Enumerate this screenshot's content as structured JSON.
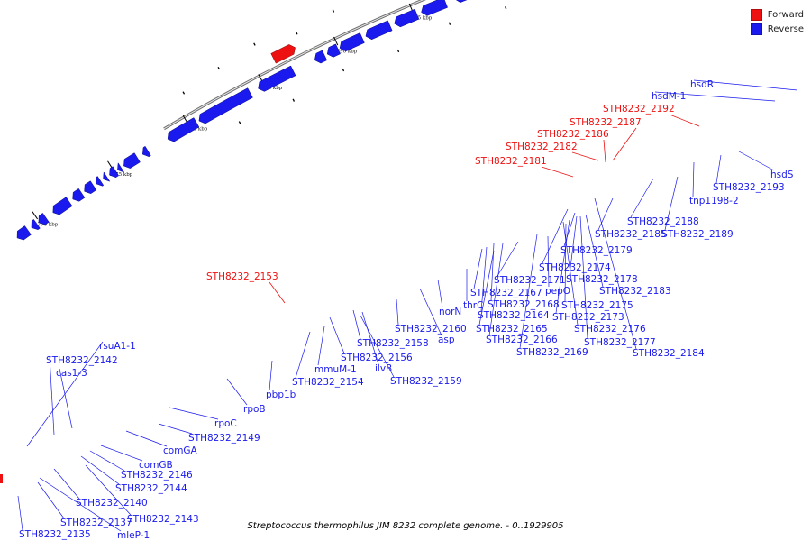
{
  "legend": {
    "forward_label": "Forward",
    "reverse_label": "Reverse",
    "forward_color": "#ee1111",
    "reverse_color": "#1a1aee"
  },
  "caption": "Streptococcus thermophilus JIM 8232 complete genome. - 0..1929905",
  "scale": {
    "unit": "kbp",
    "ticks": [
      1770,
      1775,
      1780,
      1785,
      1790,
      1795,
      1800,
      1805,
      1810,
      1815,
      1820
    ]
  },
  "labels_forward": [
    "STH8232_2153",
    "STH8232_2181",
    "STH8232_2182",
    "STH8232_2186",
    "STH8232_2187",
    "STH8232_2192"
  ],
  "labels_reverse": [
    "hsdR",
    "hsdM-1",
    "hsdS",
    "STH8232_2193",
    "tnp1198-2",
    "STH8232_2188",
    "STH8232_2189",
    "STH8232_2185",
    "STH8232_2179",
    "STH8232_2174",
    "STH8232_2178",
    "STH8232_2183",
    "STH8232_2171",
    "pepO",
    "STH8232_2175",
    "STH8232_2167",
    "STH8232_2168",
    "STH8232_2173",
    "STH8232_2164",
    "STH8232_2176",
    "STH8232_2165",
    "STH8232_2177",
    "STH8232_2166",
    "STH8232_2169",
    "STH8232_2184",
    "norN",
    "thrC",
    "asp",
    "STH8232_2160",
    "STH8232_2158",
    "STH8232_2156",
    "ilvB",
    "STH8232_2159",
    "mmuM-1",
    "STH8232_2154",
    "pbp1b",
    "rpoB",
    "rpoC",
    "STH8232_2149",
    "comGA",
    "comGB",
    "STH8232_2146",
    "STH8232_2144",
    "STH8232_2143",
    "STH8232_2140",
    "STH8232_2137",
    "mleP-1",
    "STH8232_2135",
    "rsuA1-1",
    "STH8232_2142",
    "cas1-3"
  ]
}
